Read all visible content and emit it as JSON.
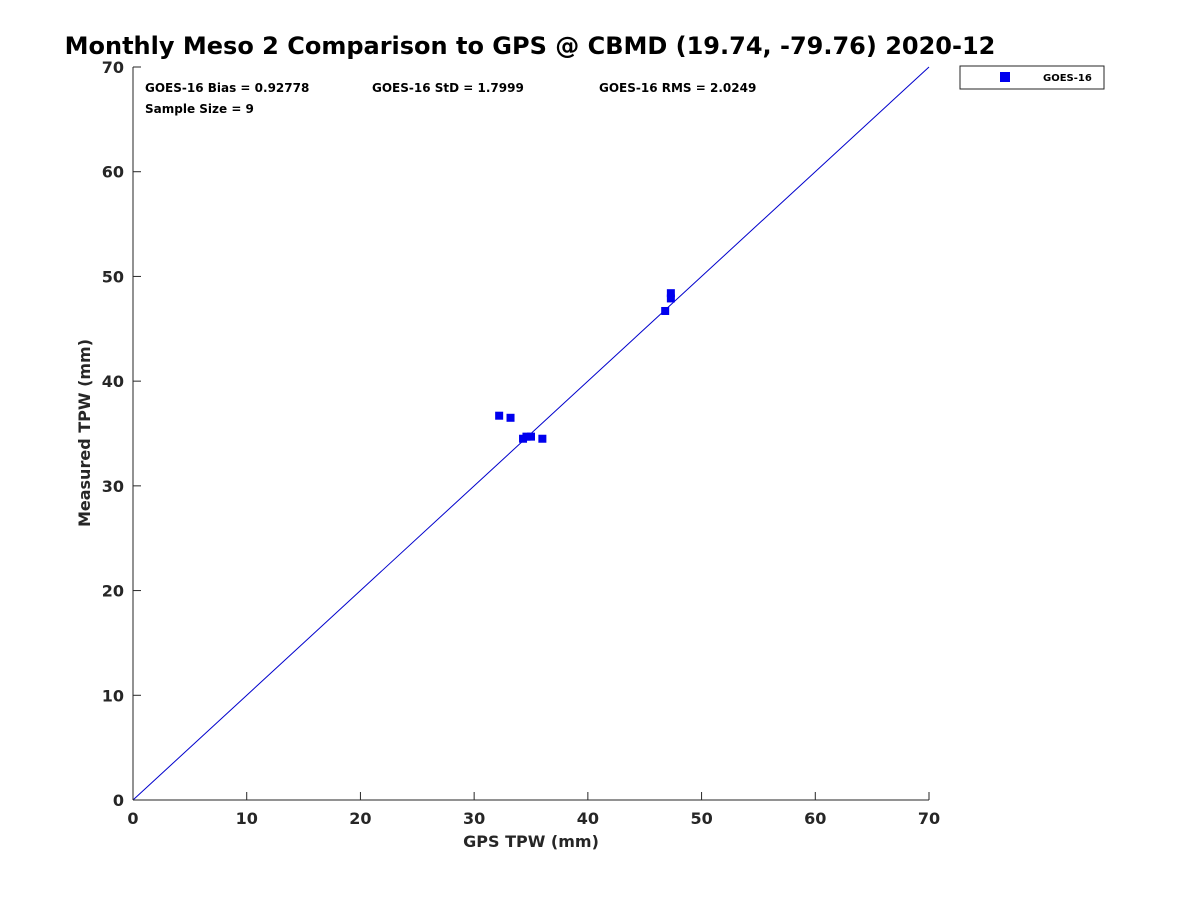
{
  "colors": {
    "series": "#0000ee",
    "line": "#0000cc",
    "axis": "#262626"
  },
  "chart_data": {
    "type": "scatter",
    "title": "Monthly Meso 2 Comparison to GPS @ CBMD (19.74, -79.76) 2020-12",
    "xlabel": "GPS TPW (mm)",
    "ylabel": "Measured TPW (mm)",
    "xlim": [
      0,
      70
    ],
    "ylim": [
      0,
      70
    ],
    "xticks": [
      "0",
      "10",
      "20",
      "30",
      "40",
      "50",
      "60",
      "70"
    ],
    "yticks": [
      "0",
      "10",
      "20",
      "30",
      "40",
      "50",
      "60",
      "70"
    ],
    "grid": false,
    "legend_position": "outside-top-right",
    "reference_line": {
      "type": "1:1",
      "from": [
        0,
        0
      ],
      "to": [
        70,
        70
      ]
    },
    "stats": {
      "bias": "GOES-16 Bias = 0.92778",
      "std": "GOES-16 StD = 1.7999",
      "rms": "GOES-16 RMS = 2.0249",
      "sample_size": "Sample Size = 9"
    },
    "series": [
      {
        "name": "GOES-16",
        "marker": "square",
        "points": [
          [
            32.2,
            36.7
          ],
          [
            33.2,
            36.5
          ],
          [
            34.3,
            34.5
          ],
          [
            34.6,
            34.7
          ],
          [
            35.0,
            34.7
          ],
          [
            36.0,
            34.5
          ],
          [
            46.8,
            46.7
          ],
          [
            47.3,
            47.9
          ],
          [
            47.3,
            48.4
          ]
        ]
      }
    ]
  }
}
